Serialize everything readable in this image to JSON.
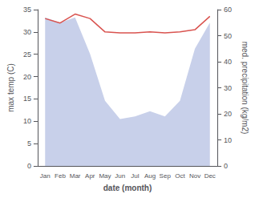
{
  "chart_data": {
    "type": "line",
    "categories": [
      "Jan",
      "Feb",
      "Mar",
      "Apr",
      "May",
      "Jun",
      "Jul",
      "Aug",
      "Sep",
      "Oct",
      "Nov",
      "Dec"
    ],
    "xlabel": "date (month)",
    "ylabel": "max temp (C)",
    "y2label": "med. precipitation (kg/m2)",
    "series": [
      {
        "type": "area",
        "axis": "y2",
        "color": "#c8d0ea",
        "values": [
          57,
          55,
          57,
          43,
          25,
          18,
          19,
          21,
          19,
          25,
          45,
          55
        ]
      },
      {
        "type": "line",
        "color": "#d9534f",
        "values": [
          33.0,
          32.0,
          34.0,
          33.0,
          30.0,
          29.8,
          29.8,
          30.0,
          29.8,
          30.0,
          30.5,
          33.5
        ]
      }
    ],
    "ylim": [
      0,
      35
    ],
    "yticks": [
      0,
      5,
      10,
      15,
      20,
      25,
      30,
      35
    ],
    "y2lim": [
      0,
      60
    ],
    "y2ticks": [
      0,
      10,
      20,
      30,
      40,
      50,
      60
    ],
    "grid": false
  }
}
